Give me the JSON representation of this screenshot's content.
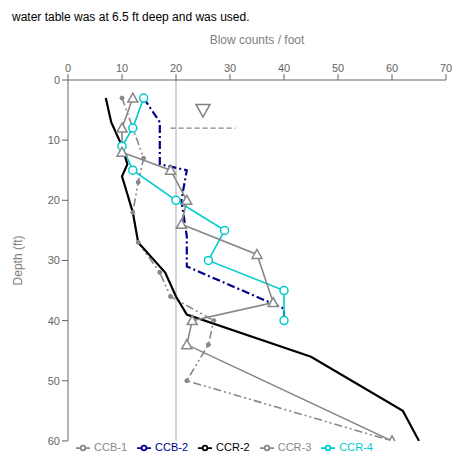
{
  "chart_data": {
    "type": "line",
    "title": "water table was at 6.5 ft deep and was used.",
    "x_label": "Blow counts / foot",
    "y_label": "Depth (ft)",
    "xlim": [
      0,
      70
    ],
    "ylim": [
      60,
      0
    ],
    "xticks": [
      0,
      10,
      20,
      30,
      40,
      50,
      60,
      70
    ],
    "yticks": [
      0,
      10,
      20,
      30,
      40,
      50,
      60
    ],
    "grid": false,
    "legend": "bottom",
    "series": [
      {
        "name": "CCB-2",
        "color": "#00008B",
        "line_style": "dashdot",
        "marker": "none",
        "x": [
          14,
          17,
          17,
          22,
          21,
          22,
          22,
          40,
          40
        ],
        "values": [
          3,
          7,
          14,
          15,
          20,
          26,
          31,
          38,
          40
        ]
      },
      {
        "name": "CCB-1",
        "color": "#888888",
        "line_style": "dashdotdot",
        "marker": "point",
        "x": [
          10,
          12,
          14,
          13,
          12,
          13,
          17,
          19,
          27,
          26,
          22,
          60
        ],
        "values": [
          3,
          8,
          13,
          17,
          22,
          27,
          32,
          36,
          40,
          44,
          50,
          60
        ]
      },
      {
        "name": "CCR-2",
        "color": "#000000",
        "line_style": "solid",
        "marker": "none",
        "x": [
          7,
          8,
          10,
          11,
          10,
          11,
          12,
          13,
          18,
          20,
          22,
          45,
          62,
          65
        ],
        "values": [
          3,
          7,
          11,
          14,
          16,
          19,
          22,
          27,
          32,
          36,
          39,
          46,
          55,
          60
        ]
      },
      {
        "name": "CCR-4",
        "color": "#00CCCC",
        "line_style": "solid",
        "marker": "circle",
        "x": [
          14,
          12,
          10,
          12,
          20,
          29,
          26,
          40,
          40
        ],
        "values": [
          3,
          8,
          11,
          15,
          20,
          25,
          30,
          35,
          40
        ]
      },
      {
        "name": "CCR-3",
        "color": "#888888",
        "line_style": "solid",
        "marker": "triangle",
        "x": [
          12,
          10,
          10,
          19,
          22,
          21,
          35,
          38,
          23,
          22,
          60
        ],
        "values": [
          3,
          8,
          12,
          15,
          20,
          24,
          29,
          37,
          40,
          44,
          60
        ]
      }
    ],
    "annotations": [
      {
        "type": "vline",
        "x": 20,
        "color": "#aaaaaa"
      },
      {
        "type": "marker",
        "marker": "triangle_down",
        "x": 25,
        "y": 5,
        "color": "gray"
      },
      {
        "type": "hline",
        "x": [
          19,
          31
        ],
        "y": 8,
        "color": "gray",
        "line_style": "dashed"
      }
    ]
  }
}
